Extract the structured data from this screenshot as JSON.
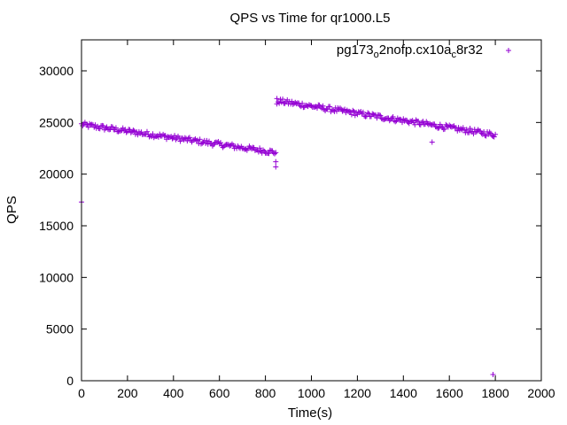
{
  "chart_data": {
    "type": "scatter",
    "title": "QPS vs Time for qr1000.L5",
    "xlabel": "Time(s)",
    "ylabel": "QPS",
    "xlim": [
      0,
      2000
    ],
    "ylim": [
      0,
      33000
    ],
    "xticks": [
      0,
      200,
      400,
      600,
      800,
      1000,
      1200,
      1400,
      1600,
      1800,
      2000
    ],
    "yticks": [
      0,
      5000,
      10000,
      15000,
      20000,
      25000,
      30000
    ],
    "grid": false,
    "legend_position": "top-right",
    "marker": "plus",
    "color": "#9400d3",
    "series": [
      {
        "name_parts": [
          {
            "text": "pg173",
            "sub": false
          },
          {
            "text": "o",
            "sub": true
          },
          {
            "text": "2nofp.cx10a",
            "sub": false
          },
          {
            "text": "c",
            "sub": true
          },
          {
            "text": "8r32",
            "sub": false
          }
        ],
        "trend_segments": [
          {
            "x_start": 0,
            "x_end": 845,
            "y_start": 24800,
            "y_end": 22100
          },
          {
            "x_start": 850,
            "x_end": 1800,
            "y_start": 27100,
            "y_end": 23800
          }
        ],
        "outliers": [
          {
            "x": 0,
            "y": 17300
          },
          {
            "x": 845,
            "y": 21200
          },
          {
            "x": 845,
            "y": 20700
          },
          {
            "x": 850,
            "y": 26800
          },
          {
            "x": 1525,
            "y": 23100
          },
          {
            "x": 1790,
            "y": 600
          }
        ]
      }
    ]
  }
}
